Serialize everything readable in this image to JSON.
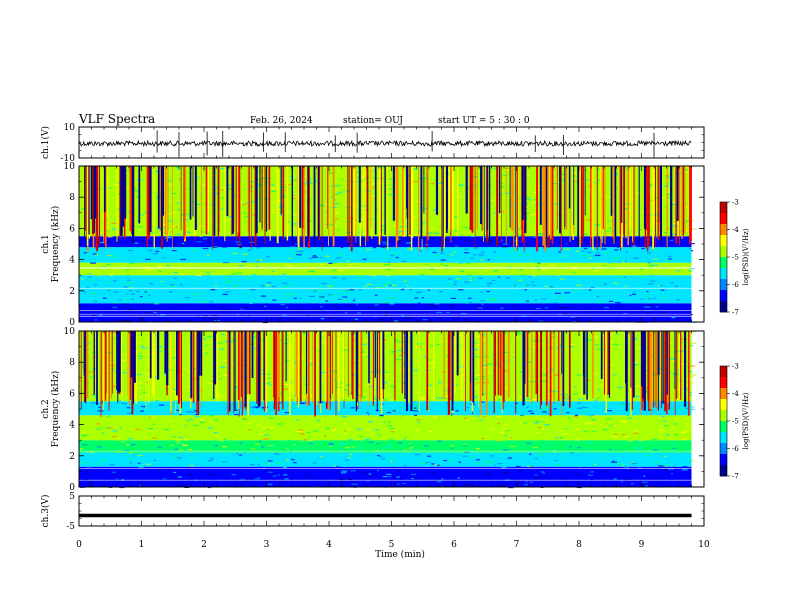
{
  "header": {
    "title": "VLF Spectra",
    "date": "Feb. 26, 2024",
    "station": "station= OUJ",
    "start": "start  UT =   5  : 30 : 0"
  },
  "chart_data": [
    {
      "type": "line",
      "panel": "ch1-waveform",
      "ylabel": "ch.1(V)",
      "ylim": [
        -10,
        10
      ],
      "yticks": [
        "10",
        "-10"
      ],
      "xlim": [
        0,
        10
      ],
      "baseline_level": 0,
      "trace_end_x": 9.8,
      "spike_x": [
        1.25,
        1.6,
        2.05,
        2.3,
        2.95,
        3.3,
        4.1,
        4.45,
        5.65,
        7.3,
        7.75,
        9.2
      ]
    },
    {
      "type": "heatmap",
      "panel": "ch1-spectrogram",
      "ylabel": "ch.1\nFrequency  (kHz)",
      "ylim": [
        0,
        10
      ],
      "yticks": [
        "0",
        "2",
        "4",
        "6",
        "8",
        "10"
      ],
      "xlim": [
        0,
        10
      ],
      "data_end_x": 9.8,
      "bands": [
        {
          "from": 0,
          "to": 0.4,
          "level": -6.4
        },
        {
          "from": 0.4,
          "to": 1.2,
          "level": -6.6
        },
        {
          "from": 1.2,
          "to": 2.2,
          "level": -5.8
        },
        {
          "from": 2.2,
          "to": 3.0,
          "level": -5.4
        },
        {
          "from": 3.0,
          "to": 3.8,
          "level": -5.0
        },
        {
          "from": 3.8,
          "to": 4.8,
          "level": -5.6
        },
        {
          "from": 4.8,
          "to": 5.5,
          "level": -6.5
        },
        {
          "from": 5.5,
          "to": 10,
          "level": -4.9
        }
      ],
      "lines_khz": [
        0.35,
        0.5,
        0.75,
        2.15,
        3.45,
        3.5
      ],
      "colorbar": {
        "label": "log(PSD)(V²/Hz)",
        "ticks": [
          "-3",
          "-4",
          "-5",
          "-6",
          "-7"
        ],
        "range": [
          -7,
          -3
        ]
      }
    },
    {
      "type": "heatmap",
      "panel": "ch2-spectrogram",
      "ylabel": "ch.2\nFrequency  (kHz)",
      "ylim": [
        0,
        10
      ],
      "yticks": [
        "0",
        "2",
        "4",
        "6",
        "8",
        "10"
      ],
      "xlim": [
        0,
        10
      ],
      "data_end_x": 9.8,
      "bands": [
        {
          "from": 0,
          "to": 0.5,
          "level": -6.6
        },
        {
          "from": 0.5,
          "to": 1.3,
          "level": -6.4
        },
        {
          "from": 1.3,
          "to": 2.2,
          "level": -5.6
        },
        {
          "from": 2.2,
          "to": 3.0,
          "level": -5.3
        },
        {
          "from": 3.0,
          "to": 4.6,
          "level": -4.8
        },
        {
          "from": 4.6,
          "to": 5.5,
          "level": -5.8
        },
        {
          "from": 5.5,
          "to": 10,
          "level": -4.9
        }
      ],
      "lines_khz": [
        0.4,
        1.2,
        2.3
      ],
      "colorbar": {
        "label": "log(PSD)(V²/Hz)",
        "ticks": [
          "-3",
          "-4",
          "-5",
          "-6",
          "-7"
        ],
        "range": [
          -7,
          -3
        ]
      }
    },
    {
      "type": "line",
      "panel": "ch3-waveform",
      "ylabel": "ch.3(V)",
      "ylim": [
        -5,
        5
      ],
      "yticks": [
        "5",
        "-5"
      ],
      "xlim": [
        0,
        10
      ],
      "constant_level": -1.5,
      "trace_end_x": 9.8
    }
  ],
  "xaxis": {
    "xlabel": "Time  (min)",
    "xticks": [
      "0",
      "1",
      "2",
      "3",
      "4",
      "5",
      "6",
      "7",
      "8",
      "9",
      "10"
    ],
    "xlim": [
      0,
      10
    ]
  },
  "colors": {
    "colormap": [
      "#00008b",
      "#0000ff",
      "#0088ff",
      "#00e5ff",
      "#00ff66",
      "#aaff00",
      "#ffff00",
      "#ff8800",
      "#ff0000",
      "#c00000",
      "#ffffff"
    ]
  }
}
